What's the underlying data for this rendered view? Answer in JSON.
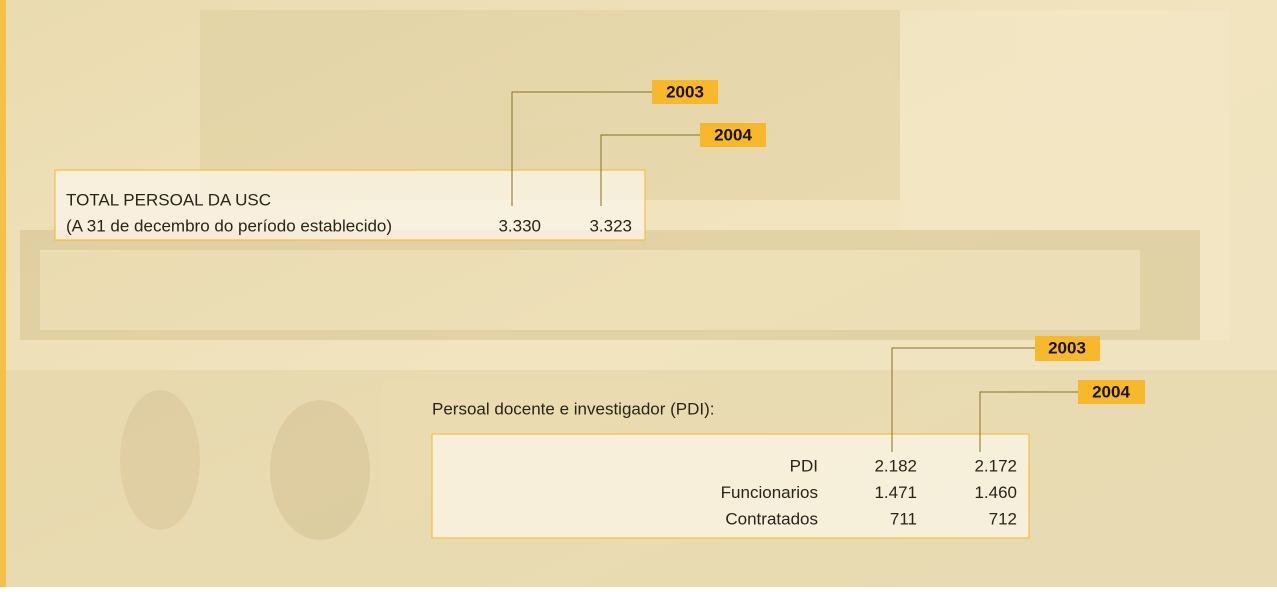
{
  "total": {
    "title": "TOTAL PERSOAL DA USC",
    "subtitle": "(A 31 de decembro do período establecido)",
    "years": [
      "2003",
      "2004"
    ],
    "values": [
      "3.330",
      "3.323"
    ]
  },
  "pdi": {
    "heading": "Persoal docente e investigador (PDI):",
    "years": [
      "2003",
      "2004"
    ],
    "rows": [
      [
        "PDI",
        "2.182",
        "2.172"
      ],
      [
        "Funcionarios",
        "1.471",
        "1.460"
      ],
      [
        "Contratados",
        "711",
        "712"
      ]
    ]
  }
}
